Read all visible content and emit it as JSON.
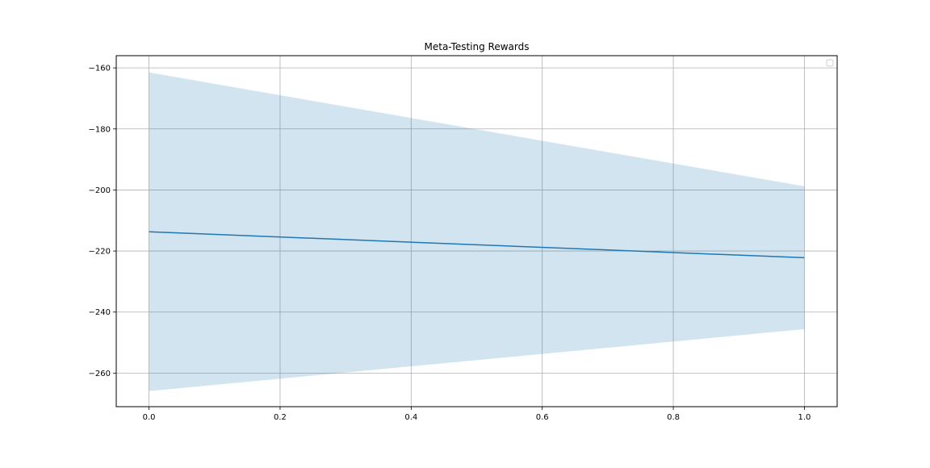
{
  "chart_data": {
    "type": "line",
    "title": "Meta-Testing Rewards",
    "xlabel": "",
    "ylabel": "",
    "xlim": [
      -0.05,
      1.05
    ],
    "ylim": [
      -271,
      -156
    ],
    "x_ticks": [
      0.0,
      0.2,
      0.4,
      0.6,
      0.8,
      1.0
    ],
    "x_tick_labels": [
      "0.0",
      "0.2",
      "0.4",
      "0.6",
      "0.8",
      "1.0"
    ],
    "y_ticks": [
      -160,
      -180,
      -200,
      -220,
      -240,
      -260
    ],
    "y_tick_labels": [
      "−160",
      "−180",
      "−200",
      "−220",
      "−240",
      "−260"
    ],
    "grid": true,
    "legend": {
      "placement": "top-right",
      "entries": []
    },
    "series": [
      {
        "x": [
          0.0,
          1.0
        ],
        "values": [
          -213.7,
          -222.2
        ],
        "lower": [
          -265.9,
          -245.6
        ],
        "upper": [
          -161.5,
          -198.8
        ],
        "color": "#1f77b4",
        "band_color": "#1f77b4"
      }
    ]
  }
}
